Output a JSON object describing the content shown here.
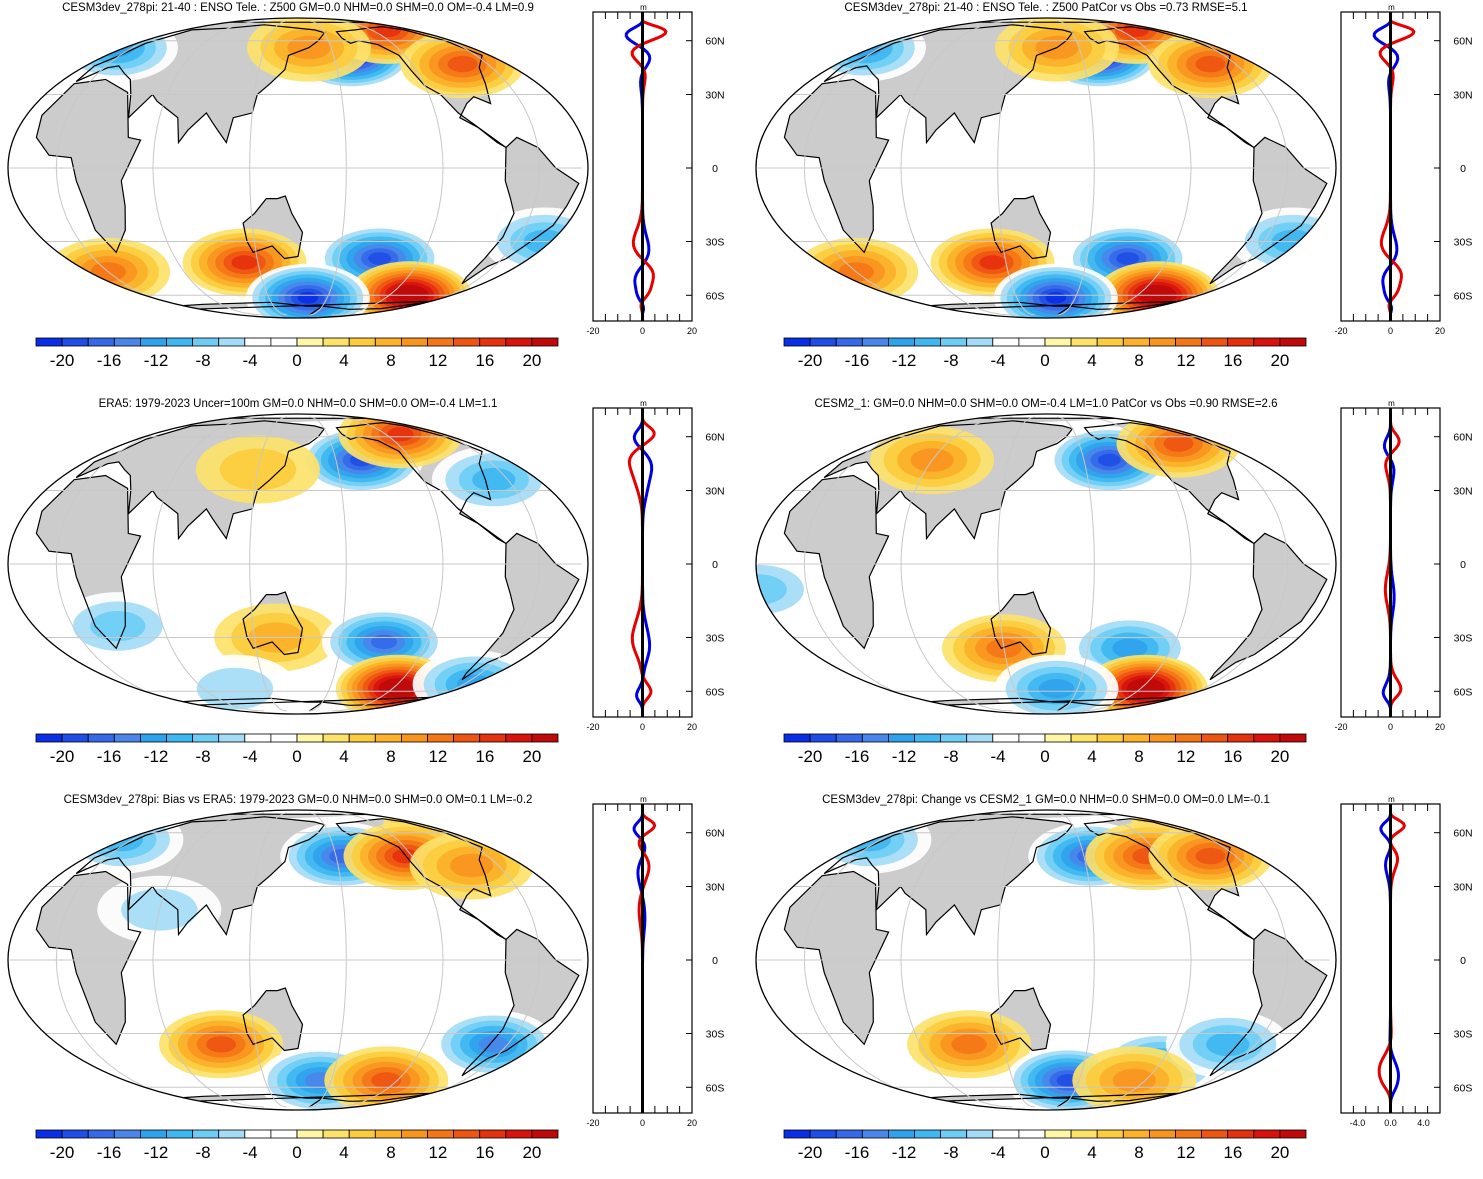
{
  "colorbar": {
    "labels": [
      "-20",
      "-16",
      "-12",
      "-8",
      "-4",
      "0",
      "4",
      "8",
      "12",
      "16",
      "20"
    ],
    "colors": [
      "#0a2ee6",
      "#1f4ee6",
      "#3569e8",
      "#4a86ea",
      "#2fa2ec",
      "#3fb7f0",
      "#6ecdf5",
      "#a3dcf6",
      "#ffffff",
      "#ffffff",
      "#fff6a6",
      "#fde26a",
      "#fccc3e",
      "#fbb12a",
      "#f8951f",
      "#f47717",
      "#ee5512",
      "#e6310f",
      "#d8130e",
      "#c00a0a"
    ]
  },
  "colors": {
    "land": "#cccccc",
    "grid": "#c8c8c8",
    "coast": "#000000",
    "line_model": "#e60000",
    "line_obs": "#0000e6",
    "line_zero": "#000000",
    "pos_field": "#f47717",
    "neg_field": "#3569e8"
  },
  "lat_labels": [
    "60N",
    "30N",
    "0",
    "30S",
    "60S"
  ],
  "lat_values": [
    60,
    30,
    0,
    -30,
    -60
  ],
  "zonal_unit": "m",
  "panels": [
    {
      "title": "CESM3dev_278pi: 21-40 : ENSO Tele. : Z500 GM=0.0 NHM=0.0 SHM=0.0 OM=-0.4 LM=0.9",
      "profile_xlim": [
        -20,
        20
      ],
      "profile_xticks": [
        "-20",
        "0",
        "20"
      ],
      "anomalies": [
        {
          "lon": -50,
          "lat": 65,
          "val": 16
        },
        {
          "lon": -165,
          "lat": 50,
          "val": -20
        },
        {
          "lon": -100,
          "lat": 70,
          "val": 14
        },
        {
          "lon": -80,
          "lat": 45,
          "val": 12
        },
        {
          "lon": 160,
          "lat": 55,
          "val": 8
        },
        {
          "lon": -15,
          "lat": 55,
          "val": -10
        },
        {
          "lon": 110,
          "lat": -40,
          "val": 14
        },
        {
          "lon": -150,
          "lat": -38,
          "val": -16
        },
        {
          "lon": -100,
          "lat": -60,
          "val": 22
        },
        {
          "lon": 160,
          "lat": -62,
          "val": -18
        },
        {
          "lon": 0,
          "lat": -45,
          "val": 10
        },
        {
          "lon": -40,
          "lat": -30,
          "val": -8
        }
      ]
    },
    {
      "title": "CESM3dev_278pi: 21-40 : ENSO Tele. : Z500 PatCor vs Obs =0.73 RMSE=5.1",
      "profile_xlim": [
        -20,
        20
      ],
      "profile_xticks": [
        "-20",
        "0",
        "20"
      ],
      "anomalies": [
        {
          "lon": -50,
          "lat": 65,
          "val": 16
        },
        {
          "lon": -165,
          "lat": 50,
          "val": -20
        },
        {
          "lon": -100,
          "lat": 70,
          "val": 14
        },
        {
          "lon": -80,
          "lat": 45,
          "val": 12
        },
        {
          "lon": 160,
          "lat": 55,
          "val": 8
        },
        {
          "lon": -15,
          "lat": 55,
          "val": -10
        },
        {
          "lon": 110,
          "lat": -40,
          "val": 14
        },
        {
          "lon": -150,
          "lat": -38,
          "val": -16
        },
        {
          "lon": -100,
          "lat": -60,
          "val": 22
        },
        {
          "lon": 160,
          "lat": -62,
          "val": -18
        },
        {
          "lon": 0,
          "lat": -45,
          "val": 10
        },
        {
          "lon": -40,
          "lat": -30,
          "val": -8
        }
      ]
    },
    {
      "title": "ERA5: 1979-2023 Uncer=100m GM=0.0 NHM=0.0 SHM=0.0 OM=-0.4 LM=1.1",
      "profile_xlim": [
        -20,
        20
      ],
      "profile_xticks": [
        "-20",
        "0",
        "20"
      ],
      "anomalies": [
        {
          "lon": -160,
          "lat": 45,
          "val": -16
        },
        {
          "lon": -105,
          "lat": 62,
          "val": 14
        },
        {
          "lon": -70,
          "lat": 35,
          "val": -8
        },
        {
          "lon": 120,
          "lat": 40,
          "val": 4
        },
        {
          "lon": 135,
          "lat": -30,
          "val": 6
        },
        {
          "lon": -150,
          "lat": -32,
          "val": -14
        },
        {
          "lon": -115,
          "lat": -58,
          "val": 22
        },
        {
          "lon": -50,
          "lat": -55,
          "val": -10
        },
        {
          "lon": 30,
          "lat": -25,
          "val": -6
        },
        {
          "lon": 90,
          "lat": -58,
          "val": -4
        }
      ]
    },
    {
      "title": "CESM2_1: GM=0.0 NHM=0.0 SHM=0.0 OM=-0.4 LM=1.0 PatCor vs Obs =0.90 RMSE=2.6",
      "profile_xlim": [
        -20,
        20
      ],
      "profile_xticks": [
        "-20",
        "0",
        "20"
      ],
      "anomalies": [
        {
          "lon": -160,
          "lat": 45,
          "val": -16
        },
        {
          "lon": -90,
          "lat": 55,
          "val": 12
        },
        {
          "lon": 60,
          "lat": 45,
          "val": 8
        },
        {
          "lon": 120,
          "lat": -35,
          "val": 10
        },
        {
          "lon": -150,
          "lat": -35,
          "val": -10
        },
        {
          "lon": -115,
          "lat": -58,
          "val": 22
        },
        {
          "lon": 160,
          "lat": -58,
          "val": -10
        },
        {
          "lon": -30,
          "lat": -10,
          "val": -6
        }
      ]
    },
    {
      "title": "CESM3dev_278pi: Bias vs ERA5: 1979-2023 GM=0.0 NHM=0.0 SHM=0.0 OM=0.1 LM=-0.2",
      "profile_xlim": [
        -20,
        20
      ],
      "profile_xticks": [
        "-20",
        "0",
        "20"
      ],
      "anomalies": [
        {
          "lon": -50,
          "lat": 65,
          "val": 16
        },
        {
          "lon": -175,
          "lat": 45,
          "val": -14
        },
        {
          "lon": -125,
          "lat": 45,
          "val": 14
        },
        {
          "lon": -80,
          "lat": 40,
          "val": 8
        },
        {
          "lon": -10,
          "lat": 55,
          "val": -8
        },
        {
          "lon": 95,
          "lat": -35,
          "val": 12
        },
        {
          "lon": 170,
          "lat": -55,
          "val": -12
        },
        {
          "lon": -130,
          "lat": -55,
          "val": 12
        },
        {
          "lon": -70,
          "lat": -35,
          "val": -12
        },
        {
          "lon": 60,
          "lat": 20,
          "val": -4
        }
      ]
    },
    {
      "title": "CESM3dev_278pi: Change vs CESM2_1 GM=0.0 NHM=0.0 SHM=0.0 OM=0.0 LM=-0.1",
      "profile_xlim": [
        -6,
        6
      ],
      "profile_xticks": [
        "-4.0",
        "0.0",
        "4.0"
      ],
      "anomalies": [
        {
          "lon": -50,
          "lat": 65,
          "val": 18
        },
        {
          "lon": -175,
          "lat": 45,
          "val": -14
        },
        {
          "lon": -130,
          "lat": 45,
          "val": 12
        },
        {
          "lon": -80,
          "lat": 45,
          "val": 12
        },
        {
          "lon": -10,
          "lat": 55,
          "val": -8
        },
        {
          "lon": 95,
          "lat": -35,
          "val": 10
        },
        {
          "lon": 170,
          "lat": -55,
          "val": -16
        },
        {
          "lon": -120,
          "lat": -45,
          "val": -10
        },
        {
          "lon": -80,
          "lat": -35,
          "val": -8
        },
        {
          "lon": -130,
          "lat": -55,
          "val": 8
        }
      ]
    }
  ]
}
